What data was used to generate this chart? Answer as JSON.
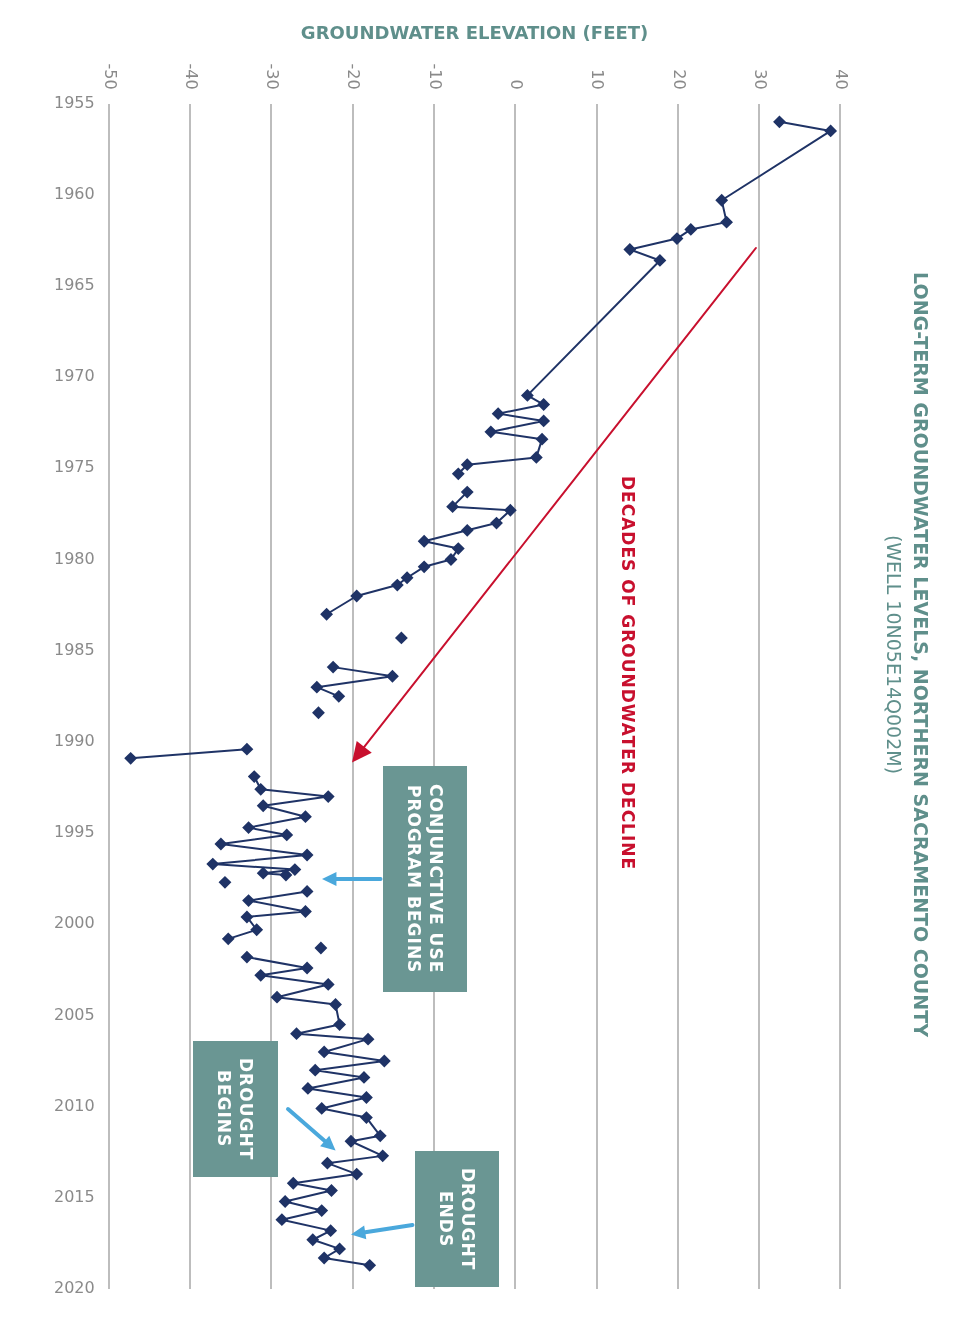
{
  "chart_data": {
    "type": "line",
    "title": "LONG-TERM GROUNDWATER LEVELS, NORTHERN SACRAMENTO COUNTY",
    "subtitle": "(WELL 10N05E14Q002M)",
    "xlabel": "GROUNDWATER ELEVATION (FEET)",
    "x": [
      32.5,
      38.8,
      25.4,
      26.0,
      21.6,
      19.9,
      14.1,
      17.8,
      1.5,
      3.5,
      -2.1,
      3.5,
      -3.0,
      3.3,
      2.6,
      -5.9,
      -7.0,
      -6.5,
      -5.9,
      -7.7,
      -0.6,
      -2.3,
      -5.9,
      -11.2,
      -7.0,
      -7.9,
      -11.2,
      -13.3,
      -14.5,
      -19.5,
      -23.2,
      -18.0,
      -14.0,
      -18.0,
      -22.4,
      -15.1,
      -24.4,
      -21.7,
      -23.0,
      -24.2,
      -28.0,
      -33.0,
      -47.3,
      -40.0,
      -32.1,
      -31.3,
      -23.0,
      -31.0,
      -25.8,
      -32.8,
      -28.1,
      -36.2,
      -25.6,
      -37.2,
      -27.1,
      -31.0,
      -28.2,
      -32.0,
      -35.7,
      -30.0,
      -25.6,
      -32.8,
      -25.8,
      -33.0,
      -31.8,
      -35.3,
      -30.0,
      -23.9,
      -28.0,
      -33.0,
      -25.6,
      -31.3,
      -23.0,
      -29.3,
      -22.1,
      -21.6,
      -26.9,
      -18.1,
      -23.5,
      -16.1,
      -24.6,
      -18.6,
      -25.5,
      -18.3,
      -23.8,
      -18.3,
      -16.6,
      -20.2,
      -16.3,
      -23.1,
      -19.5,
      -27.3,
      -22.6,
      -28.3,
      -23.8,
      -28.7,
      -22.7,
      -24.9,
      -21.6,
      -23.5,
      -17.9
    ],
    "series": [
      {
        "color": "#1f3366",
        "values": [
          1956.0,
          1956.5,
          1960.3,
          1961.5,
          1961.9,
          1962.4,
          1963.0,
          1963.6,
          1971.0,
          1971.5,
          1972.0,
          1972.4,
          1973.0,
          1973.4,
          1974.4,
          1974.8,
          1975.3,
          null,
          1976.3,
          1977.1,
          1977.3,
          1978.0,
          1978.4,
          1979.0,
          1979.4,
          1980.0,
          1980.4,
          1981.0,
          1981.4,
          1982.0,
          1983.0,
          null,
          1984.3,
          null,
          1985.9,
          1986.4,
          1987.0,
          1987.5,
          null,
          1988.4,
          null,
          1990.4,
          1990.9,
          null,
          1991.9,
          1992.6,
          1993.0,
          1993.5,
          1994.1,
          1994.7,
          1995.1,
          1995.6,
          1996.2,
          1996.7,
          1997.0,
          1997.2,
          1997.3,
          null,
          1997.7,
          null,
          1998.2,
          1998.7,
          1999.3,
          1999.6,
          2000.3,
          2000.8,
          null,
          2001.3,
          null,
          2001.8,
          2002.4,
          2002.8,
          2003.3,
          2004.0,
          2004.4,
          2005.5,
          2006.0,
          2006.3,
          2007.0,
          2007.5,
          2008.0,
          2008.4,
          2009.0,
          2009.5,
          2010.1,
          2010.6,
          2011.6,
          2011.9,
          2012.7,
          2013.1,
          2013.7,
          2014.2,
          2014.6,
          2015.2,
          2015.7,
          2016.2,
          2016.8,
          2017.3,
          2017.8,
          2018.3,
          2018.7
        ]
      }
    ],
    "xlim": [
      -50,
      40
    ],
    "xticks": [
      -50,
      -40,
      -30,
      -20,
      -10,
      0,
      10,
      20,
      30,
      40
    ],
    "ylim": [
      2020,
      1955
    ],
    "yticks": [
      1955,
      1960,
      1965,
      1970,
      1975,
      1980,
      1985,
      1990,
      1995,
      2000,
      2005,
      2010,
      2015,
      2020
    ],
    "grid": "x",
    "marker": "diamond",
    "line_style": "solid",
    "legend": false,
    "annotations": [
      "DECADES OF GROUNDWATER DECLINE",
      "CONJUNCTIVE USE PROGRAM BEGINS",
      "DROUGHT BEGINS",
      "DROUGHT ENDS"
    ]
  }
}
